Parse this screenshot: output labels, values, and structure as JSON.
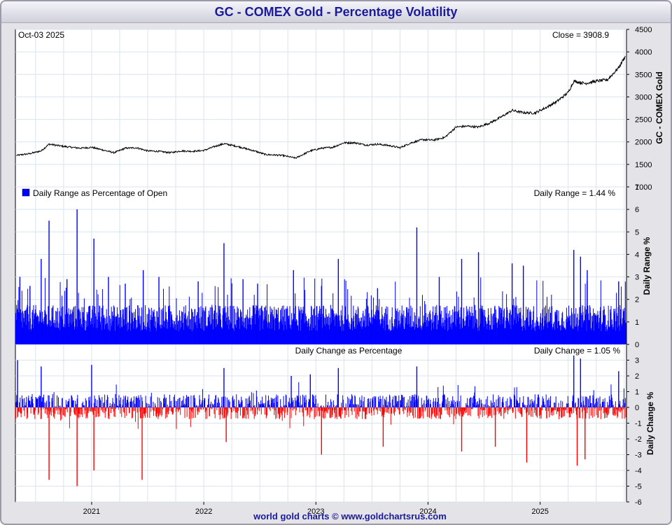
{
  "title": "GC - COMEX Gold - Percentage Volatility",
  "footer": "world gold charts © www.goldchartsrus.com",
  "colors": {
    "title": "#1a1a9a",
    "price_line": "#000000",
    "range_bars": "#0000ff",
    "change_up": "#0000ff",
    "change_down": "#ff0000",
    "grid": "#d8e4f0"
  },
  "chart_data": [
    {
      "type": "line",
      "id": "price",
      "title": "GC - COMEX Gold",
      "date_label": "Oct-03  2025",
      "readout": "Close = 3908.9",
      "ylabel": "GC - COMEX Gold",
      "ylim": [
        1000,
        4500
      ],
      "yticks": [
        "4500",
        "4000",
        "3500",
        "3000",
        "2500",
        "2000",
        "1500",
        "1000"
      ],
      "series": [
        {
          "name": "Close",
          "x": [
            2020.33,
            2020.45,
            2020.55,
            2020.62,
            2020.75,
            2020.9,
            2021.0,
            2021.1,
            2021.2,
            2021.3,
            2021.4,
            2021.5,
            2021.6,
            2021.7,
            2021.8,
            2021.9,
            2022.0,
            2022.1,
            2022.18,
            2022.3,
            2022.45,
            2022.55,
            2022.7,
            2022.82,
            2022.95,
            2023.05,
            2023.15,
            2023.25,
            2023.35,
            2023.45,
            2023.55,
            2023.65,
            2023.75,
            2023.85,
            2023.95,
            2024.05,
            2024.15,
            2024.25,
            2024.35,
            2024.45,
            2024.55,
            2024.65,
            2024.75,
            2024.85,
            2024.95,
            2025.05,
            2025.15,
            2025.25,
            2025.3,
            2025.4,
            2025.5,
            2025.6,
            2025.7,
            2025.76
          ],
          "values": [
            1700,
            1740,
            1800,
            1950,
            1900,
            1860,
            1880,
            1820,
            1760,
            1860,
            1870,
            1800,
            1790,
            1760,
            1800,
            1790,
            1810,
            1900,
            1960,
            1900,
            1800,
            1720,
            1700,
            1640,
            1800,
            1860,
            1880,
            1980,
            1980,
            1930,
            1950,
            1920,
            1870,
            1980,
            2050,
            2040,
            2100,
            2330,
            2350,
            2330,
            2420,
            2550,
            2700,
            2650,
            2640,
            2760,
            2900,
            3100,
            3350,
            3300,
            3350,
            3380,
            3650,
            3908.9
          ]
        }
      ]
    },
    {
      "type": "bar",
      "id": "daily-range",
      "legend": "Daily Range as Percentage of Open",
      "readout": "Daily Range = 1.44 %",
      "ylabel": "Daily Range %",
      "ylim": [
        0,
        7
      ],
      "yticks": [
        "7",
        "6",
        "5",
        "4",
        "3",
        "2",
        "1",
        "0"
      ],
      "typical": 1.3,
      "spikes": [
        {
          "x": 2020.36,
          "v": 3.0
        },
        {
          "x": 2020.45,
          "v": 2.6
        },
        {
          "x": 2020.55,
          "v": 3.8
        },
        {
          "x": 2020.62,
          "v": 5.5
        },
        {
          "x": 2020.78,
          "v": 2.9
        },
        {
          "x": 2020.87,
          "v": 6.0
        },
        {
          "x": 2021.02,
          "v": 4.7
        },
        {
          "x": 2021.15,
          "v": 3.0
        },
        {
          "x": 2021.3,
          "v": 2.7
        },
        {
          "x": 2021.46,
          "v": 3.3
        },
        {
          "x": 2021.6,
          "v": 3.0
        },
        {
          "x": 2021.95,
          "v": 2.8
        },
        {
          "x": 2022.18,
          "v": 4.5
        },
        {
          "x": 2022.35,
          "v": 2.9
        },
        {
          "x": 2022.48,
          "v": 2.7
        },
        {
          "x": 2022.8,
          "v": 3.3
        },
        {
          "x": 2023.05,
          "v": 2.6
        },
        {
          "x": 2023.2,
          "v": 3.8
        },
        {
          "x": 2023.55,
          "v": 2.5
        },
        {
          "x": 2023.9,
          "v": 5.2
        },
        {
          "x": 2024.1,
          "v": 3.0
        },
        {
          "x": 2024.3,
          "v": 3.8
        },
        {
          "x": 2024.45,
          "v": 4.1
        },
        {
          "x": 2024.75,
          "v": 3.6
        },
        {
          "x": 2024.85,
          "v": 3.5
        },
        {
          "x": 2025.3,
          "v": 4.2
        },
        {
          "x": 2025.36,
          "v": 3.9
        },
        {
          "x": 2025.42,
          "v": 3.3
        },
        {
          "x": 2025.7,
          "v": 2.8
        }
      ]
    },
    {
      "type": "bar",
      "id": "daily-change",
      "legend": "Daily Change as Percentage",
      "readout": "Daily Change = 1.05 %",
      "ylabel": "Daily Change %",
      "ylim": [
        -6,
        4
      ],
      "yticks": [
        "3",
        "2",
        "1",
        "0",
        "-1",
        "-2",
        "-3",
        "-4",
        "-5",
        "-6"
      ],
      "spikes": [
        {
          "x": 2020.34,
          "v": 3.0
        },
        {
          "x": 2020.55,
          "v": 2.6
        },
        {
          "x": 2020.62,
          "v": -4.6
        },
        {
          "x": 2020.87,
          "v": -5.0
        },
        {
          "x": 2021.0,
          "v": 2.7
        },
        {
          "x": 2021.02,
          "v": -4.0
        },
        {
          "x": 2021.45,
          "v": -4.6
        },
        {
          "x": 2022.18,
          "v": 2.5
        },
        {
          "x": 2022.2,
          "v": -2.2
        },
        {
          "x": 2022.78,
          "v": 2.0
        },
        {
          "x": 2022.95,
          "v": 2.1
        },
        {
          "x": 2023.05,
          "v": -3.0
        },
        {
          "x": 2023.2,
          "v": 2.5
        },
        {
          "x": 2023.6,
          "v": -2.5
        },
        {
          "x": 2023.9,
          "v": 2.6
        },
        {
          "x": 2024.3,
          "v": -2.8
        },
        {
          "x": 2024.6,
          "v": -2.5
        },
        {
          "x": 2024.88,
          "v": -3.5
        },
        {
          "x": 2025.3,
          "v": 3.3
        },
        {
          "x": 2025.33,
          "v": -3.7
        },
        {
          "x": 2025.36,
          "v": 3.1
        },
        {
          "x": 2025.4,
          "v": -3.3
        },
        {
          "x": 2025.7,
          "v": 2.3
        }
      ]
    }
  ],
  "x_axis": {
    "xlim": [
      2020.32,
      2025.77
    ],
    "ticks": [
      2021,
      2022,
      2023,
      2024,
      2025
    ],
    "tick_labels": [
      "2021",
      "2022",
      "2023",
      "2024",
      "2025"
    ]
  }
}
